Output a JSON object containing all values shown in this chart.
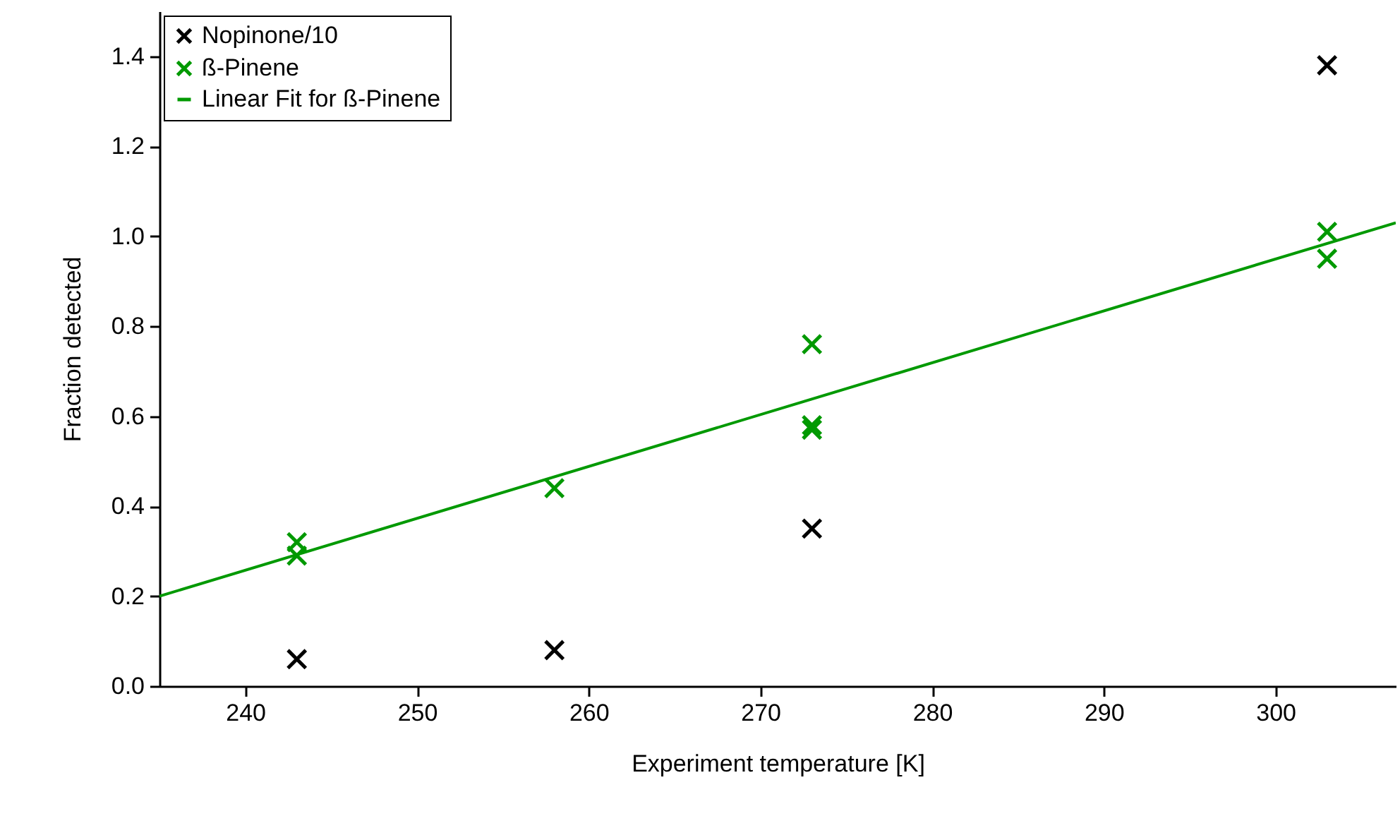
{
  "chart_data": {
    "type": "scatter",
    "xlabel": "Experiment temperature [K]",
    "ylabel": "Fraction detected",
    "xlim": [
      235,
      307
    ],
    "ylim": [
      0,
      1.5
    ],
    "xticks": [
      240,
      250,
      260,
      270,
      280,
      290,
      300
    ],
    "yticks": [
      {
        "value": 0,
        "label": "0.0"
      },
      0.2,
      0.4,
      0.6,
      0.8,
      {
        "value": 1,
        "label": "1.0"
      },
      1.2,
      1.4
    ],
    "marker": "cross",
    "grid": false,
    "legend": "top left",
    "series": [
      {
        "name": "Nopinone/10",
        "color": "#000000",
        "x": [
          243,
          258,
          273,
          303
        ],
        "values": [
          0.06,
          0.08,
          0.35,
          1.38
        ]
      },
      {
        "name": "ß-Pinene",
        "color": "#009900",
        "x": [
          243,
          243,
          258,
          273,
          273,
          273,
          303,
          303
        ],
        "values": [
          0.32,
          0.29,
          0.44,
          0.76,
          0.58,
          0.57,
          1.01,
          0.95
        ]
      },
      {
        "name": "Linear Fit for ß-Pinene",
        "type": "line",
        "marker": "none",
        "color": "#009900",
        "x": [
          235,
          307
        ],
        "values": [
          0.2,
          1.03
        ]
      }
    ]
  }
}
